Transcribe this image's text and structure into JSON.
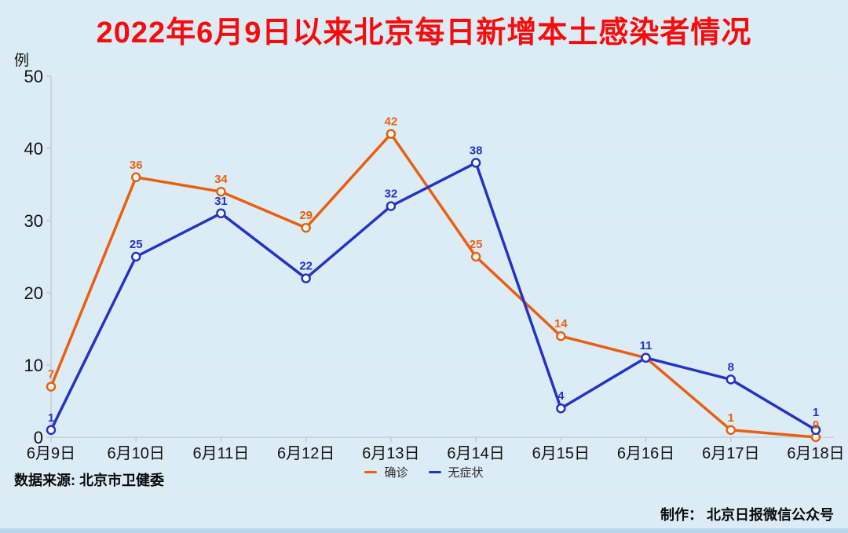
{
  "page": {
    "title": "2022年6月9日以来北京每日新增本土感染者情况",
    "unit_label": "例",
    "source": "数据来源: 北京市卫健委",
    "credit": "制作： 北京日报微信公众号"
  },
  "colors": {
    "background": "#dcecf7",
    "title": "#f80b0b",
    "confirmed": "#e8600f",
    "asymptomatic": "#2433c4",
    "axis": "#c5cdd4",
    "grid": "#efe9df",
    "text": "#111111",
    "separator": "#e9e3d7",
    "bottom_bar": "#b9d8ec"
  },
  "chart_data": {
    "type": "line",
    "title": "2022年6月9日以来北京每日新增本土感染者情况",
    "categories": [
      "6月9日",
      "6月10日",
      "6月11日",
      "6月12日",
      "6月13日",
      "6月14日",
      "6月15日",
      "6月16日",
      "6月17日",
      "6月18日"
    ],
    "series": [
      {
        "name": "确诊",
        "color": "#e8600f",
        "values": [
          7,
          36,
          34,
          29,
          42,
          25,
          14,
          11,
          1,
          0
        ],
        "hide_label_indices": [
          7
        ]
      },
      {
        "name": "无症状",
        "color": "#2433c4",
        "values": [
          1,
          25,
          31,
          22,
          32,
          38,
          4,
          11,
          8,
          1
        ],
        "hide_label_indices": []
      }
    ],
    "xlabel": "",
    "ylabel": "例",
    "ylim": [
      0,
      50
    ],
    "yticks": [
      0,
      10,
      20,
      30,
      40,
      50
    ],
    "grid": true,
    "grid_style": "dotted",
    "legend_position": "bottom",
    "marker": "open-circle"
  }
}
